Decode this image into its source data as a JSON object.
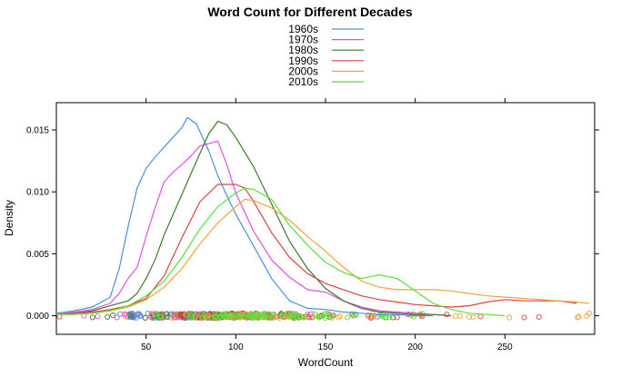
{
  "chart_data": {
    "type": "line",
    "title": "Word Count for Different Decades",
    "xlabel": "WordCount",
    "ylabel": "Density",
    "xlim": [
      0,
      300
    ],
    "ylim": [
      -0.0015,
      0.0172
    ],
    "x_ticks": [
      50,
      100,
      150,
      200,
      250
    ],
    "y_ticks": [
      0.0,
      0.005,
      0.01,
      0.015
    ],
    "y_tick_labels": [
      "0.000",
      "0.005",
      "0.010",
      "0.015"
    ],
    "grid": false,
    "legend_position": "top-center",
    "rug": true,
    "series": [
      {
        "name": "1960s",
        "color": "#4a90e2",
        "x": [
          0,
          10,
          20,
          30,
          35,
          40,
          45,
          50,
          55,
          60,
          65,
          70,
          73,
          78,
          85,
          90,
          95,
          100,
          110,
          120,
          130,
          140,
          150,
          160,
          170,
          180,
          190,
          200,
          210
        ],
        "y": [
          0.0002,
          0.0004,
          0.0007,
          0.0015,
          0.0038,
          0.0072,
          0.0103,
          0.0119,
          0.0128,
          0.0136,
          0.0144,
          0.0152,
          0.016,
          0.0155,
          0.0133,
          0.0113,
          0.0097,
          0.0082,
          0.0056,
          0.003,
          0.0012,
          0.0006,
          0.0005,
          0.0003,
          0.0002,
          0.0001,
          0.0001,
          0.0,
          0.0
        ]
      },
      {
        "name": "1970s",
        "color": "#e14ee8",
        "x": [
          0,
          10,
          20,
          30,
          35,
          40,
          45,
          50,
          55,
          60,
          65,
          70,
          75,
          80,
          90,
          95,
          100,
          110,
          120,
          130,
          140,
          150,
          160,
          170,
          180,
          190,
          200,
          210,
          220
        ],
        "y": [
          0.0001,
          0.0003,
          0.0005,
          0.001,
          0.0018,
          0.003,
          0.0039,
          0.0064,
          0.0087,
          0.0108,
          0.0116,
          0.0122,
          0.0129,
          0.0137,
          0.0141,
          0.0122,
          0.0099,
          0.0068,
          0.0045,
          0.0031,
          0.0021,
          0.0019,
          0.0012,
          0.0007,
          0.0004,
          0.0003,
          0.0002,
          0.0001,
          0.0
        ]
      },
      {
        "name": "1980s",
        "color": "#3d7a2a",
        "x": [
          0,
          10,
          20,
          30,
          40,
          45,
          50,
          55,
          60,
          70,
          80,
          85,
          90,
          95,
          100,
          110,
          120,
          130,
          140,
          150,
          160,
          170,
          180,
          190,
          200,
          210,
          220
        ],
        "y": [
          0.0001,
          0.0002,
          0.0004,
          0.0008,
          0.0012,
          0.0018,
          0.003,
          0.0045,
          0.0065,
          0.0098,
          0.0131,
          0.0147,
          0.0157,
          0.0154,
          0.0144,
          0.012,
          0.009,
          0.006,
          0.0038,
          0.0022,
          0.0012,
          0.0006,
          0.0003,
          0.0002,
          0.0001,
          0.0001,
          0.0
        ]
      },
      {
        "name": "1990s",
        "color": "#e04040",
        "x": [
          0,
          10,
          20,
          30,
          40,
          50,
          60,
          70,
          80,
          90,
          100,
          105,
          110,
          120,
          130,
          140,
          150,
          160,
          170,
          180,
          190,
          200,
          210,
          220,
          230,
          240,
          250,
          260,
          270,
          280,
          290
        ],
        "y": [
          0.0001,
          0.0002,
          0.0003,
          0.0005,
          0.0008,
          0.0014,
          0.0032,
          0.0063,
          0.0092,
          0.0106,
          0.0106,
          0.0103,
          0.0092,
          0.0067,
          0.0047,
          0.0034,
          0.0026,
          0.0021,
          0.0016,
          0.0013,
          0.0011,
          0.0009,
          0.0008,
          0.0007,
          0.0008,
          0.0011,
          0.0013,
          0.0012,
          0.0012,
          0.0012,
          0.001
        ]
      },
      {
        "name": "2000s",
        "color": "#f2a33a",
        "x": [
          0,
          10,
          20,
          30,
          40,
          50,
          60,
          70,
          80,
          90,
          100,
          105,
          110,
          120,
          130,
          140,
          150,
          160,
          170,
          180,
          190,
          200,
          210,
          220,
          230,
          240,
          250,
          260,
          270,
          280,
          290,
          297
        ],
        "y": [
          0.0001,
          0.0001,
          0.0002,
          0.0004,
          0.0007,
          0.0013,
          0.0023,
          0.0038,
          0.0058,
          0.0075,
          0.0088,
          0.0094,
          0.0093,
          0.0087,
          0.0077,
          0.0064,
          0.0052,
          0.0039,
          0.0028,
          0.0023,
          0.0021,
          0.0021,
          0.0021,
          0.002,
          0.0018,
          0.0016,
          0.0015,
          0.0014,
          0.0013,
          0.0012,
          0.0011,
          0.001
        ]
      },
      {
        "name": "2010s",
        "color": "#55e23a",
        "x": [
          0,
          10,
          20,
          30,
          40,
          50,
          60,
          70,
          80,
          90,
          100,
          105,
          110,
          120,
          130,
          140,
          150,
          160,
          170,
          180,
          190,
          200,
          210,
          220,
          230,
          240,
          250
        ],
        "y": [
          0.0001,
          0.0001,
          0.0002,
          0.0004,
          0.0008,
          0.0016,
          0.0028,
          0.0047,
          0.007,
          0.0088,
          0.0099,
          0.0103,
          0.0102,
          0.0094,
          0.0073,
          0.0057,
          0.0043,
          0.0035,
          0.003,
          0.0033,
          0.003,
          0.002,
          0.001,
          0.0005,
          0.0002,
          0.0001,
          0.0
        ]
      }
    ]
  }
}
